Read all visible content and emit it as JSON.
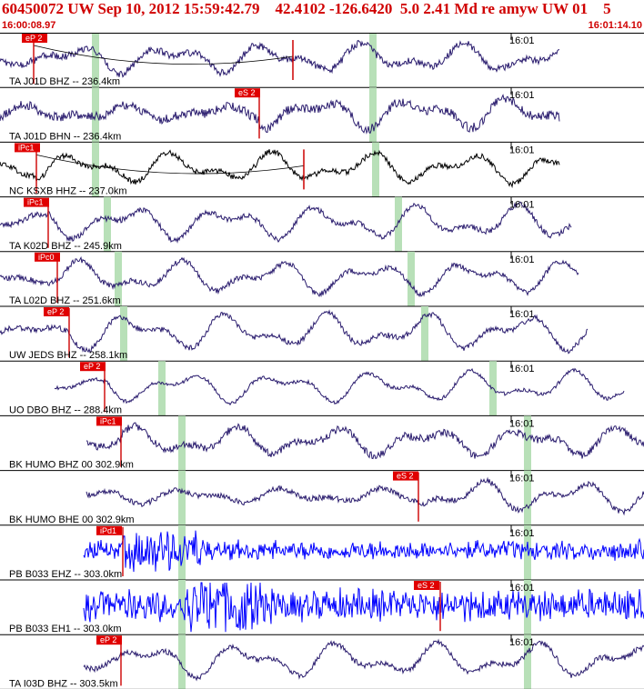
{
  "header": {
    "title": "60450072 UW Sep 10, 2012 15:59:42.79    42.4102 -126.6420  5.0 2.41 Md re amyw UW 01    5",
    "start_time": "16:00:08.97",
    "end_time": "16:01:14.10"
  },
  "colors": {
    "header_text": "#d00000",
    "trace_default": "#2a1c6e",
    "trace_black": "#000000",
    "trace_blue": "#0000ff",
    "pick_box": "#e00000",
    "pick_line": "#cc0000",
    "window_green": "#b8e0b8",
    "separator": "#000000"
  },
  "time_marker": "16:01",
  "traces": [
    {
      "label": "TA J01D BHZ -- 236.4km",
      "color": "default",
      "picks": [
        {
          "label": "eP 2"
        }
      ]
    },
    {
      "label": "TA J01D BHN -- 236.4km",
      "color": "default",
      "picks": [
        {
          "label": "eS 2"
        }
      ]
    },
    {
      "label": "NC KSXB HHZ -- 237.0km",
      "color": "black",
      "picks": [
        {
          "label": "iPc1"
        }
      ]
    },
    {
      "label": "TA K02D BHZ -- 245.9km",
      "color": "default",
      "picks": [
        {
          "label": "iPc1"
        }
      ]
    },
    {
      "label": "TA L02D BHZ -- 251.6km",
      "color": "default",
      "picks": [
        {
          "label": "iPc0"
        }
      ]
    },
    {
      "label": "UW JEDS BHZ -- 258.1km",
      "color": "default",
      "picks": [
        {
          "label": "eP 2"
        }
      ]
    },
    {
      "label": "UO DBO BHZ -- 288.4km",
      "color": "default",
      "picks": [
        {
          "label": "eP 2"
        }
      ]
    },
    {
      "label": "BK HUMO BHZ 00 302.9km",
      "color": "default",
      "picks": [
        {
          "label": "iPc1"
        }
      ]
    },
    {
      "label": "BK HUMO BHE 00 302.9km",
      "color": "default",
      "picks": [
        {
          "label": "eS 2"
        }
      ]
    },
    {
      "label": "PB B033 EHZ -- 303.0km",
      "color": "blue",
      "picks": [
        {
          "label": "iPd1"
        }
      ]
    },
    {
      "label": "PB B033 EH1 -- 303.0km",
      "color": "blue",
      "picks": [
        {
          "label": "eS 2"
        }
      ]
    },
    {
      "label": "TA I03D BHZ -- 303.5km",
      "color": "default",
      "picks": [
        {
          "label": "eP 2"
        }
      ]
    }
  ]
}
